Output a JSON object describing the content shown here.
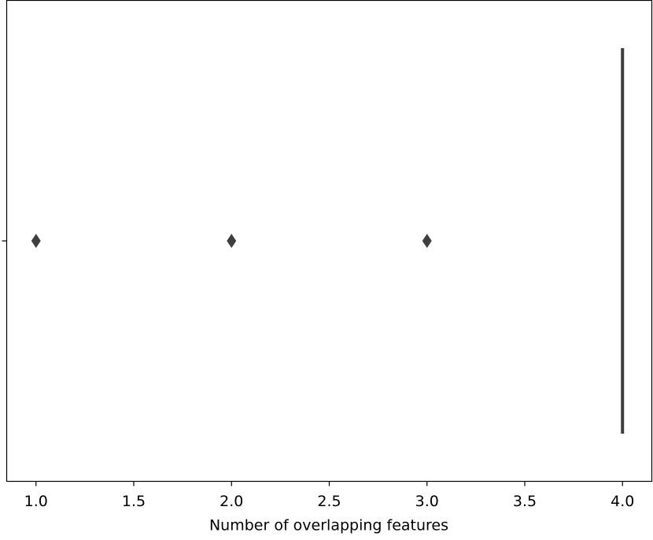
{
  "chart_data": {
    "type": "box",
    "orientation": "horizontal",
    "xlabel": "Number of overlapping features",
    "categories": [
      null
    ],
    "series": [
      {
        "color": "#3f3f3f",
        "whislo": [
          4
        ],
        "q1": [
          4
        ],
        "median": [
          4
        ],
        "q3": [
          4
        ],
        "whishi": [
          4
        ],
        "fliers": [
          [
            1,
            2,
            3
          ]
        ]
      }
    ],
    "xlim": [
      0.85,
      4.15
    ],
    "xticks": [
      {
        "value": 1,
        "label": "1.0"
      },
      {
        "value": 1.5,
        "label": "1.5"
      },
      {
        "value": 2,
        "label": "2.0"
      },
      {
        "value": 2.5,
        "label": "2.5"
      },
      {
        "value": 3,
        "label": "3.0"
      },
      {
        "value": 3.5,
        "label": "3.5"
      },
      {
        "value": 4,
        "label": "4.0"
      }
    ],
    "grid": false
  }
}
